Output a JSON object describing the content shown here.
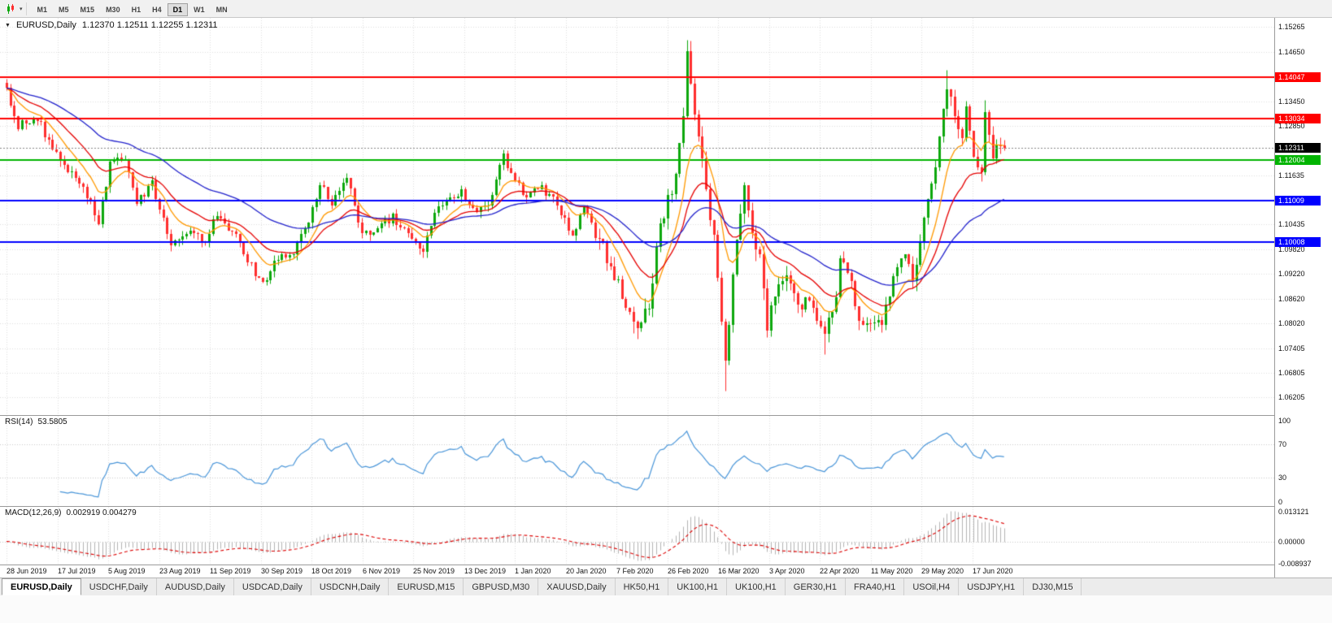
{
  "toolbar": {
    "chart_type_icon": "candlestick-chart-icon",
    "timeframes": [
      {
        "label": "M1",
        "active": false
      },
      {
        "label": "M5",
        "active": false
      },
      {
        "label": "M15",
        "active": false
      },
      {
        "label": "M30",
        "active": false
      },
      {
        "label": "H1",
        "active": false
      },
      {
        "label": "H4",
        "active": false
      },
      {
        "label": "D1",
        "active": true
      },
      {
        "label": "W1",
        "active": false
      },
      {
        "label": "MN",
        "active": false
      }
    ]
  },
  "chart": {
    "symbol_label": "EURUSD,Daily",
    "ohlc_text": "1.12370 1.12511 1.12255 1.12311"
  },
  "indicators": {
    "rsi": {
      "label": "RSI(14)",
      "value": "53.5805",
      "axis_labels": [
        "100",
        "70",
        "30",
        "0"
      ]
    },
    "macd": {
      "label": "MACD(12,26,9)",
      "value": "0.002919 0.004279",
      "axis_labels": [
        "0.013121",
        "0.00000",
        "-0.008937"
      ]
    }
  },
  "chart_data": {
    "type": "candlestick",
    "title": "EURUSD,Daily",
    "x_labels": [
      "28 Jun 2019",
      "17 Jul 2019",
      "5 Aug 2019",
      "23 Aug 2019",
      "11 Sep 2019",
      "30 Sep 2019",
      "18 Oct 2019",
      "6 Nov 2019",
      "25 Nov 2019",
      "13 Dec 2019",
      "1 Jan 2020",
      "20 Jan 2020",
      "7 Feb 2020",
      "26 Feb 2020",
      "16 Mar 2020",
      "3 Apr 2020",
      "22 Apr 2020",
      "11 May 2020",
      "29 May 2020",
      "17 Jun 2020"
    ],
    "y_ticks": [
      "1.15265",
      "1.14650",
      "1.13450",
      "1.12850",
      "1.11635",
      "1.10435",
      "1.09820",
      "1.09220",
      "1.08620",
      "1.08020",
      "1.07405",
      "1.06805",
      "1.06205"
    ],
    "price_range": [
      1.0577,
      1.1549
    ],
    "n_candles": 262,
    "up_color": "#0da80d",
    "down_color": "#ff2e2e",
    "price_path": [
      [
        0,
        1.1372
      ],
      [
        3,
        1.1285
      ],
      [
        8,
        1.13
      ],
      [
        13,
        1.1218
      ],
      [
        18,
        1.115
      ],
      [
        22,
        1.1105
      ],
      [
        24,
        1.1045
      ],
      [
        27,
        1.1195
      ],
      [
        31,
        1.1205
      ],
      [
        34,
        1.1095
      ],
      [
        38,
        1.1148
      ],
      [
        43,
        1.0992
      ],
      [
        48,
        1.1035
      ],
      [
        52,
        1.1005
      ],
      [
        55,
        1.1072
      ],
      [
        60,
        1.1015
      ],
      [
        64,
        1.094
      ],
      [
        67,
        1.09
      ],
      [
        71,
        1.096
      ],
      [
        75,
        1.098
      ],
      [
        79,
        1.1045
      ],
      [
        82,
        1.114
      ],
      [
        85,
        1.11
      ],
      [
        89,
        1.1165
      ],
      [
        93,
        1.102
      ],
      [
        97,
        1.1035
      ],
      [
        101,
        1.1065
      ],
      [
        105,
        1.102
      ],
      [
        109,
        1.0982
      ],
      [
        112,
        1.108
      ],
      [
        116,
        1.1105
      ],
      [
        119,
        1.113
      ],
      [
        122,
        1.1075
      ],
      [
        126,
        1.109
      ],
      [
        130,
        1.1212
      ],
      [
        132,
        1.116
      ],
      [
        136,
        1.1115
      ],
      [
        140,
        1.113
      ],
      [
        144,
        1.1095
      ],
      [
        148,
        1.1008
      ],
      [
        151,
        1.1092
      ],
      [
        155,
        1.0995
      ],
      [
        160,
        1.091
      ],
      [
        164,
        1.079
      ],
      [
        168,
        1.0855
      ],
      [
        171,
        1.103
      ],
      [
        174,
        1.1135
      ],
      [
        177,
        1.129
      ],
      [
        178,
        1.145
      ],
      [
        181,
        1.127
      ],
      [
        183,
        1.111
      ],
      [
        185,
        1.1
      ],
      [
        188,
        1.07
      ],
      [
        191,
        1.101
      ],
      [
        193,
        1.113
      ],
      [
        195,
        1.103
      ],
      [
        197,
        1.096
      ],
      [
        199,
        1.0805
      ],
      [
        202,
        1.089
      ],
      [
        205,
        1.0915
      ],
      [
        207,
        1.084
      ],
      [
        210,
        1.086
      ],
      [
        214,
        1.0775
      ],
      [
        217,
        1.087
      ],
      [
        218,
        1.0955
      ],
      [
        221,
        1.09
      ],
      [
        223,
        1.0795
      ],
      [
        226,
        1.081
      ],
      [
        229,
        1.0795
      ],
      [
        232,
        1.0915
      ],
      [
        235,
        1.0975
      ],
      [
        237,
        1.09
      ],
      [
        239,
        1.1
      ],
      [
        241,
        1.11
      ],
      [
        243,
        1.117
      ],
      [
        245,
        1.1337
      ],
      [
        246,
        1.139
      ],
      [
        248,
        1.1294
      ],
      [
        250,
        1.1256
      ],
      [
        251,
        1.1323
      ],
      [
        253,
        1.1206
      ],
      [
        255,
        1.1177
      ],
      [
        256,
        1.1308
      ],
      [
        258,
        1.1218
      ],
      [
        260,
        1.1242
      ],
      [
        261,
        1.12311
      ]
    ],
    "key_extremes": [
      {
        "i": 164,
        "low": 1.0778
      },
      {
        "i": 178,
        "high": 1.1495
      },
      {
        "i": 188,
        "low": 1.0636
      },
      {
        "i": 193,
        "high": 1.1147
      },
      {
        "i": 214,
        "low": 1.0727
      },
      {
        "i": 246,
        "high": 1.1422
      },
      {
        "i": 256,
        "high": 1.1348
      },
      {
        "i": 258,
        "low": 1.1202
      }
    ],
    "last_candle": {
      "open": 1.1237,
      "high": 1.12511,
      "low": 1.12255,
      "close": 1.12311
    },
    "horizontal_lines": [
      {
        "price": 1.14047,
        "label": "1.14047",
        "color": "#ff0000"
      },
      {
        "price": 1.13034,
        "label": "1.13034",
        "color": "#ff0000"
      },
      {
        "price": 1.12004,
        "label": "1.12004",
        "color": "#00b400"
      },
      {
        "price": 1.11009,
        "label": "1.11009",
        "color": "#0000ff"
      },
      {
        "price": 1.10008,
        "label": "1.10008",
        "color": "#0000ff"
      }
    ],
    "current_price": {
      "value": 1.12311,
      "label": "1.12311",
      "bg": "#000000"
    },
    "moving_averages": [
      {
        "period": 10,
        "color": "#ff9900"
      },
      {
        "period": 21,
        "color": "#e60000"
      },
      {
        "period": 50,
        "color": "#2222cc"
      }
    ],
    "rsi": {
      "period": 14,
      "levels": [
        70,
        30
      ],
      "color": "#4a96d9",
      "range": [
        0,
        100
      ]
    },
    "macd": {
      "fast": 12,
      "slow": 26,
      "signal": 9,
      "histogram_color": "#b4b4b4",
      "signal_color": "#dd0000"
    }
  },
  "bottom_tabs": [
    {
      "label": "EURUSD,Daily",
      "active": true
    },
    {
      "label": "USDCHF,Daily",
      "active": false
    },
    {
      "label": "AUDUSD,Daily",
      "active": false
    },
    {
      "label": "USDCAD,Daily",
      "active": false
    },
    {
      "label": "USDCNH,Daily",
      "active": false
    },
    {
      "label": "EURUSD,M15",
      "active": false
    },
    {
      "label": "GBPUSD,M30",
      "active": false
    },
    {
      "label": "XAUUSD,Daily",
      "active": false
    },
    {
      "label": "HK50,H1",
      "active": false
    },
    {
      "label": "UK100,H1",
      "active": false
    },
    {
      "label": "UK100,H1",
      "active": false
    },
    {
      "label": "GER30,H1",
      "active": false
    },
    {
      "label": "FRA40,H1",
      "active": false
    },
    {
      "label": "USOil,H4",
      "active": false
    },
    {
      "label": "USDJPY,H1",
      "active": false
    },
    {
      "label": "DJ30,M15",
      "active": false
    }
  ]
}
